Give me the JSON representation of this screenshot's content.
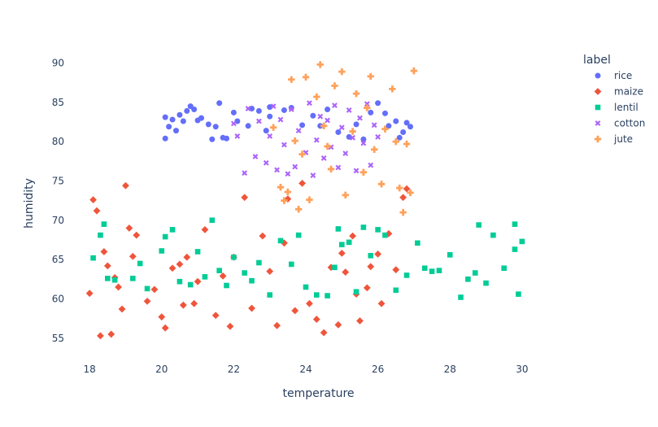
{
  "chart_data": {
    "type": "scatter",
    "xlabel": "temperature",
    "ylabel": "humidity",
    "xlim": [
      17.5,
      31.2
    ],
    "ylim": [
      52.7,
      91.6
    ],
    "xticks": [
      18,
      20,
      22,
      24,
      26,
      28,
      30
    ],
    "yticks": [
      55,
      60,
      65,
      70,
      75,
      80,
      85,
      90
    ],
    "legend": {
      "title": "label",
      "placement": "right"
    },
    "series": [
      {
        "name": "rice",
        "color": "#636efa",
        "symbol": "circle",
        "points": [
          [
            20.1,
            80.4
          ],
          [
            20.1,
            83.1
          ],
          [
            20.2,
            81.9
          ],
          [
            20.3,
            82.8
          ],
          [
            20.4,
            81.4
          ],
          [
            20.5,
            83.4
          ],
          [
            20.6,
            82.6
          ],
          [
            20.7,
            83.9
          ],
          [
            20.8,
            84.5
          ],
          [
            20.9,
            84.1
          ],
          [
            21.0,
            82.7
          ],
          [
            21.1,
            83.0
          ],
          [
            21.3,
            82.2
          ],
          [
            21.4,
            80.3
          ],
          [
            21.5,
            81.9
          ],
          [
            21.6,
            84.9
          ],
          [
            21.7,
            80.5
          ],
          [
            21.8,
            80.4
          ],
          [
            22.0,
            83.7
          ],
          [
            22.1,
            82.6
          ],
          [
            22.4,
            82.0
          ],
          [
            22.5,
            84.2
          ],
          [
            22.7,
            83.9
          ],
          [
            22.9,
            81.4
          ],
          [
            23.0,
            84.4
          ],
          [
            23.0,
            83.2
          ],
          [
            23.4,
            84.0
          ],
          [
            23.6,
            84.3
          ],
          [
            23.9,
            82.1
          ],
          [
            24.2,
            83.3
          ],
          [
            24.4,
            82.0
          ],
          [
            24.6,
            84.1
          ],
          [
            24.9,
            81.2
          ],
          [
            25.2,
            80.6
          ],
          [
            25.4,
            82.2
          ],
          [
            25.6,
            80.3
          ],
          [
            25.8,
            83.7
          ],
          [
            26.0,
            84.9
          ],
          [
            26.2,
            83.6
          ],
          [
            26.3,
            82.0
          ],
          [
            26.5,
            82.6
          ],
          [
            26.6,
            80.5
          ],
          [
            26.7,
            81.2
          ],
          [
            26.8,
            82.4
          ],
          [
            26.9,
            81.9
          ]
        ]
      },
      {
        "name": "maize",
        "color": "#ef553b",
        "symbol": "diamond",
        "points": [
          [
            18.0,
            60.7
          ],
          [
            18.1,
            72.6
          ],
          [
            18.2,
            71.2
          ],
          [
            18.3,
            55.3
          ],
          [
            18.4,
            66.0
          ],
          [
            18.5,
            64.2
          ],
          [
            18.6,
            55.5
          ],
          [
            18.7,
            62.7
          ],
          [
            18.8,
            61.5
          ],
          [
            18.9,
            58.7
          ],
          [
            19.0,
            74.4
          ],
          [
            19.1,
            69.0
          ],
          [
            19.2,
            65.4
          ],
          [
            19.3,
            68.1
          ],
          [
            19.6,
            59.7
          ],
          [
            19.8,
            61.2
          ],
          [
            20.0,
            57.7
          ],
          [
            20.1,
            56.3
          ],
          [
            20.3,
            63.9
          ],
          [
            20.5,
            64.4
          ],
          [
            20.6,
            59.2
          ],
          [
            20.7,
            65.3
          ],
          [
            20.9,
            59.4
          ],
          [
            21.0,
            62.2
          ],
          [
            21.2,
            68.8
          ],
          [
            21.5,
            57.9
          ],
          [
            21.7,
            62.9
          ],
          [
            21.9,
            56.5
          ],
          [
            22.0,
            65.3
          ],
          [
            22.3,
            72.9
          ],
          [
            22.5,
            58.8
          ],
          [
            22.8,
            68.0
          ],
          [
            23.0,
            63.5
          ],
          [
            23.2,
            56.6
          ],
          [
            23.4,
            67.1
          ],
          [
            23.5,
            72.7
          ],
          [
            23.7,
            58.5
          ],
          [
            23.9,
            74.7
          ],
          [
            24.1,
            59.4
          ],
          [
            24.3,
            57.4
          ],
          [
            24.5,
            55.7
          ],
          [
            24.7,
            64.0
          ],
          [
            24.9,
            56.7
          ],
          [
            25.0,
            65.8
          ],
          [
            25.1,
            63.4
          ],
          [
            25.3,
            68.0
          ],
          [
            25.4,
            60.6
          ],
          [
            25.5,
            57.2
          ],
          [
            25.7,
            61.4
          ],
          [
            25.8,
            64.1
          ],
          [
            26.0,
            65.7
          ],
          [
            26.1,
            59.4
          ],
          [
            26.3,
            68.3
          ],
          [
            26.5,
            63.7
          ],
          [
            26.7,
            72.9
          ],
          [
            26.8,
            74.0
          ]
        ]
      },
      {
        "name": "lentil",
        "color": "#00cc96",
        "symbol": "square",
        "points": [
          [
            18.1,
            65.2
          ],
          [
            18.3,
            68.1
          ],
          [
            18.4,
            69.5
          ],
          [
            18.5,
            62.6
          ],
          [
            18.7,
            62.4
          ],
          [
            19.2,
            62.6
          ],
          [
            19.4,
            64.5
          ],
          [
            19.6,
            61.3
          ],
          [
            20.0,
            66.1
          ],
          [
            20.1,
            67.9
          ],
          [
            20.3,
            68.8
          ],
          [
            20.5,
            62.2
          ],
          [
            20.8,
            61.8
          ],
          [
            21.0,
            66.0
          ],
          [
            21.2,
            62.8
          ],
          [
            21.4,
            70.0
          ],
          [
            21.6,
            63.6
          ],
          [
            21.8,
            61.7
          ],
          [
            22.0,
            65.3
          ],
          [
            22.3,
            63.3
          ],
          [
            22.5,
            62.3
          ],
          [
            22.7,
            64.6
          ],
          [
            23.0,
            60.5
          ],
          [
            23.3,
            67.4
          ],
          [
            23.6,
            64.4
          ],
          [
            23.8,
            68.1
          ],
          [
            24.0,
            61.5
          ],
          [
            24.3,
            60.5
          ],
          [
            24.6,
            60.4
          ],
          [
            24.8,
            64.0
          ],
          [
            24.9,
            68.9
          ],
          [
            25.0,
            66.9
          ],
          [
            25.2,
            67.2
          ],
          [
            25.4,
            60.9
          ],
          [
            25.6,
            69.1
          ],
          [
            25.8,
            65.5
          ],
          [
            26.0,
            68.8
          ],
          [
            26.2,
            68.1
          ],
          [
            26.5,
            61.1
          ],
          [
            26.8,
            63.0
          ],
          [
            27.1,
            67.1
          ],
          [
            27.3,
            63.9
          ],
          [
            27.5,
            63.5
          ],
          [
            27.7,
            63.6
          ],
          [
            28.0,
            65.6
          ],
          [
            28.3,
            60.2
          ],
          [
            28.5,
            62.5
          ],
          [
            28.7,
            63.3
          ],
          [
            28.8,
            69.4
          ],
          [
            29.0,
            62.0
          ],
          [
            29.2,
            68.1
          ],
          [
            29.5,
            63.9
          ],
          [
            29.8,
            66.3
          ],
          [
            29.8,
            69.5
          ],
          [
            29.9,
            60.6
          ],
          [
            30.0,
            67.3
          ]
        ]
      },
      {
        "name": "cotton",
        "color": "#ab63fa",
        "symbol": "x",
        "points": [
          [
            22.0,
            82.3
          ],
          [
            22.1,
            80.7
          ],
          [
            22.3,
            76.0
          ],
          [
            22.4,
            84.2
          ],
          [
            22.6,
            78.1
          ],
          [
            22.7,
            82.6
          ],
          [
            22.9,
            77.3
          ],
          [
            23.0,
            80.7
          ],
          [
            23.1,
            84.5
          ],
          [
            23.2,
            76.4
          ],
          [
            23.3,
            82.8
          ],
          [
            23.4,
            79.6
          ],
          [
            23.5,
            75.9
          ],
          [
            23.6,
            84.1
          ],
          [
            23.7,
            76.8
          ],
          [
            23.8,
            81.4
          ],
          [
            24.0,
            78.6
          ],
          [
            24.1,
            84.9
          ],
          [
            24.2,
            75.7
          ],
          [
            24.3,
            80.2
          ],
          [
            24.4,
            83.2
          ],
          [
            24.5,
            77.9
          ],
          [
            24.6,
            82.7
          ],
          [
            24.7,
            79.3
          ],
          [
            24.8,
            84.6
          ],
          [
            24.9,
            76.7
          ],
          [
            25.0,
            81.8
          ],
          [
            25.1,
            78.5
          ],
          [
            25.2,
            84.0
          ],
          [
            25.3,
            80.5
          ],
          [
            25.4,
            76.3
          ],
          [
            25.5,
            83.0
          ],
          [
            25.6,
            79.8
          ],
          [
            25.7,
            84.8
          ],
          [
            25.8,
            77.0
          ],
          [
            25.9,
            82.1
          ],
          [
            26.0,
            80.6
          ]
        ]
      },
      {
        "name": "jute",
        "color": "#ffa15a",
        "symbol": "cross",
        "points": [
          [
            23.1,
            81.8
          ],
          [
            23.3,
            74.2
          ],
          [
            23.4,
            72.5
          ],
          [
            23.5,
            73.6
          ],
          [
            23.6,
            87.9
          ],
          [
            23.7,
            80.1
          ],
          [
            23.8,
            71.4
          ],
          [
            23.9,
            78.4
          ],
          [
            24.0,
            88.2
          ],
          [
            24.1,
            72.6
          ],
          [
            24.3,
            85.7
          ],
          [
            24.4,
            89.8
          ],
          [
            24.5,
            82.0
          ],
          [
            24.6,
            79.4
          ],
          [
            24.7,
            76.5
          ],
          [
            24.8,
            87.1
          ],
          [
            25.0,
            88.9
          ],
          [
            25.1,
            73.2
          ],
          [
            25.3,
            81.3
          ],
          [
            25.4,
            86.1
          ],
          [
            25.6,
            76.1
          ],
          [
            25.7,
            84.3
          ],
          [
            25.8,
            88.3
          ],
          [
            25.9,
            79.0
          ],
          [
            26.1,
            74.6
          ],
          [
            26.2,
            81.6
          ],
          [
            26.4,
            86.7
          ],
          [
            26.5,
            80.0
          ],
          [
            26.6,
            74.1
          ],
          [
            26.7,
            71.0
          ],
          [
            26.8,
            79.7
          ],
          [
            26.9,
            73.5
          ],
          [
            27.0,
            89.0
          ]
        ]
      }
    ]
  }
}
